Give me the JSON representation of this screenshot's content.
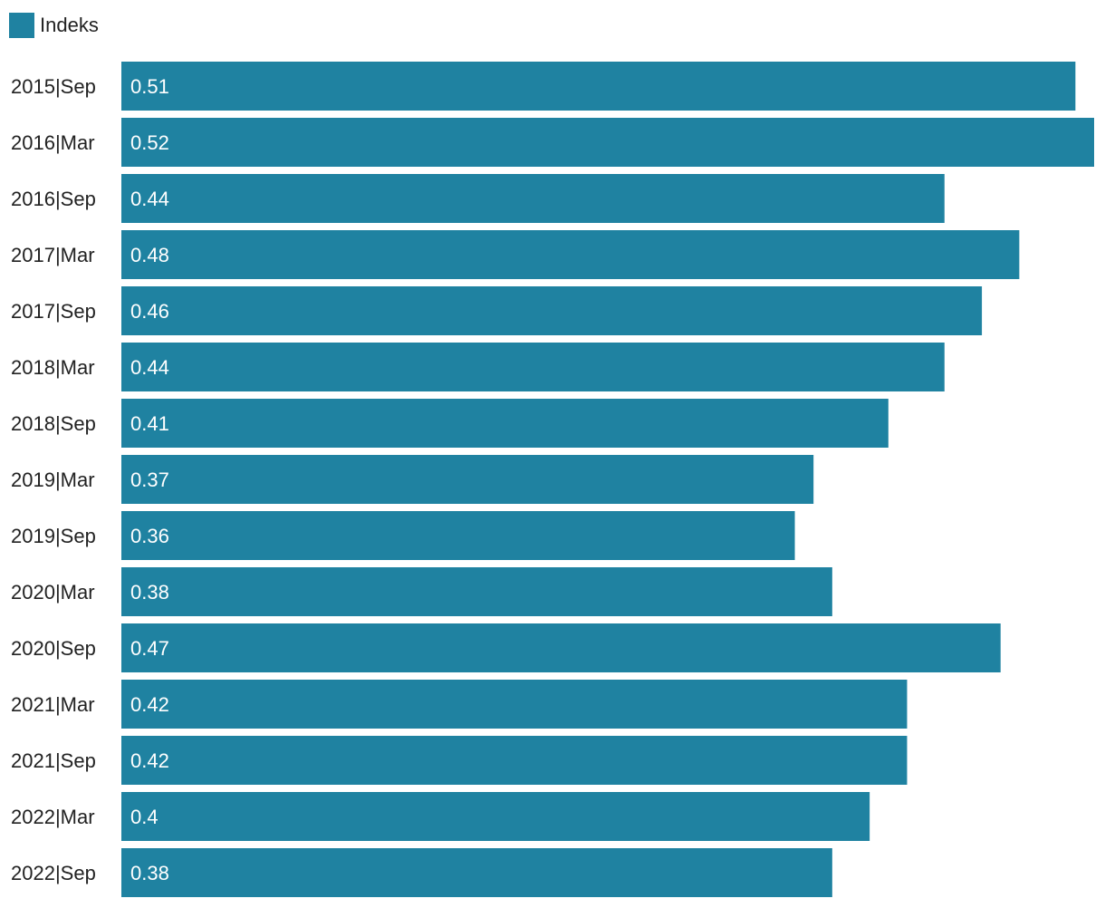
{
  "legend": {
    "label": "Indeks",
    "color": "#1f82a1"
  },
  "chart_data": {
    "type": "bar",
    "orientation": "horizontal",
    "categories": [
      "2015|Sep",
      "2016|Mar",
      "2016|Sep",
      "2017|Mar",
      "2017|Sep",
      "2018|Mar",
      "2018|Sep",
      "2019|Mar",
      "2019|Sep",
      "2020|Mar",
      "2020|Sep",
      "2021|Mar",
      "2021|Sep",
      "2022|Mar",
      "2022|Sep"
    ],
    "series": [
      {
        "name": "Indeks",
        "color": "#1f82a1",
        "values": [
          0.51,
          0.52,
          0.44,
          0.48,
          0.46,
          0.44,
          0.41,
          0.37,
          0.36,
          0.38,
          0.47,
          0.42,
          0.42,
          0.4,
          0.38
        ]
      }
    ],
    "data_labels": [
      "0.51",
      "0.52",
      "0.44",
      "0.48",
      "0.46",
      "0.44",
      "0.41",
      "0.37",
      "0.36",
      "0.38",
      "0.47",
      "0.42",
      "0.42",
      "0.4",
      "0.38"
    ],
    "xlim": [
      0,
      0.52
    ],
    "legend_position": "top-left",
    "grid": false
  }
}
